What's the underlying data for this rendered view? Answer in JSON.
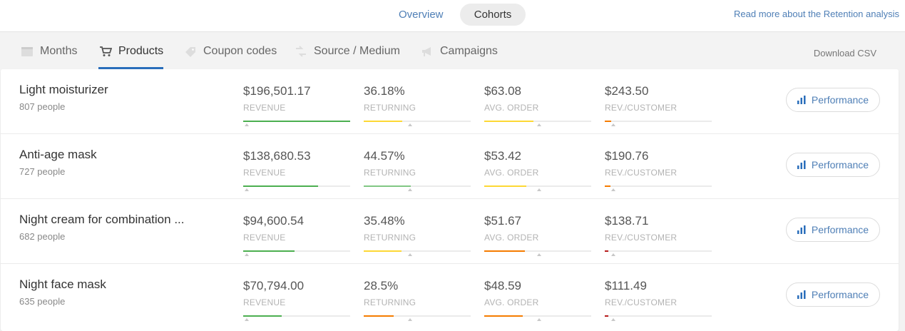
{
  "header": {
    "view_tabs": [
      {
        "label": "Overview",
        "active": false
      },
      {
        "label": "Cohorts",
        "active": true
      }
    ],
    "read_more": "Read more about the Retention analysis"
  },
  "tabs": [
    {
      "label": "Months",
      "icon": "calendar-icon",
      "active": false
    },
    {
      "label": "Products",
      "icon": "cart-icon",
      "active": true
    },
    {
      "label": "Coupon codes",
      "icon": "tag-icon",
      "active": false
    },
    {
      "label": "Source / Medium",
      "icon": "source-icon",
      "active": false
    },
    {
      "label": "Campaigns",
      "icon": "megaphone-icon",
      "active": false
    }
  ],
  "download_label": "Download CSV",
  "colors": {
    "green": "#4caf50",
    "light_green": "#81c784",
    "yellow": "#fdd835",
    "orange": "#f57c00",
    "dark_red": "#b71c1c",
    "accent": "#2a6ebb"
  },
  "button_label": "Performance",
  "rows": [
    {
      "name": "Light moisturizer",
      "people": "807 people",
      "metrics": [
        {
          "value": "$196,501.17",
          "label": "REVENUE",
          "fill": 1.0,
          "avg": 0.03,
          "color": "#4caf50"
        },
        {
          "value": "36.18%",
          "label": "RETURNING",
          "fill": 0.36,
          "avg": 0.43,
          "color": "#fdd835"
        },
        {
          "value": "$63.08",
          "label": "AVG. ORDER",
          "fill": 0.46,
          "avg": 0.51,
          "color": "#fdd835"
        },
        {
          "value": "$243.50",
          "label": "REV./CUSTOMER",
          "fill": 0.06,
          "avg": 0.08,
          "color": "#f57c00"
        }
      ]
    },
    {
      "name": "Anti-age mask",
      "people": "727 people",
      "metrics": [
        {
          "value": "$138,680.53",
          "label": "REVENUE",
          "fill": 0.7,
          "avg": 0.03,
          "color": "#4caf50"
        },
        {
          "value": "44.57%",
          "label": "RETURNING",
          "fill": 0.44,
          "avg": 0.43,
          "color": "#81c784"
        },
        {
          "value": "$53.42",
          "label": "AVG. ORDER",
          "fill": 0.39,
          "avg": 0.51,
          "color": "#fdd835"
        },
        {
          "value": "$190.76",
          "label": "REV./CUSTOMER",
          "fill": 0.05,
          "avg": 0.08,
          "color": "#f57c00"
        }
      ]
    },
    {
      "name": "Night cream for combination ...",
      "people": "682 people",
      "metrics": [
        {
          "value": "$94,600.54",
          "label": "REVENUE",
          "fill": 0.48,
          "avg": 0.03,
          "color": "#4caf50"
        },
        {
          "value": "35.48%",
          "label": "RETURNING",
          "fill": 0.35,
          "avg": 0.43,
          "color": "#fdd835"
        },
        {
          "value": "$51.67",
          "label": "AVG. ORDER",
          "fill": 0.38,
          "avg": 0.51,
          "color": "#f57c00"
        },
        {
          "value": "$138.71",
          "label": "REV./CUSTOMER",
          "fill": 0.03,
          "avg": 0.08,
          "color": "#b71c1c"
        }
      ]
    },
    {
      "name": "Night face mask",
      "people": "635 people",
      "metrics": [
        {
          "value": "$70,794.00",
          "label": "REVENUE",
          "fill": 0.36,
          "avg": 0.03,
          "color": "#4caf50"
        },
        {
          "value": "28.5%",
          "label": "RETURNING",
          "fill": 0.28,
          "avg": 0.43,
          "color": "#f57c00"
        },
        {
          "value": "$48.59",
          "label": "AVG. ORDER",
          "fill": 0.36,
          "avg": 0.51,
          "color": "#f57c00"
        },
        {
          "value": "$111.49",
          "label": "REV./CUSTOMER",
          "fill": 0.03,
          "avg": 0.08,
          "color": "#b71c1c"
        }
      ]
    }
  ]
}
